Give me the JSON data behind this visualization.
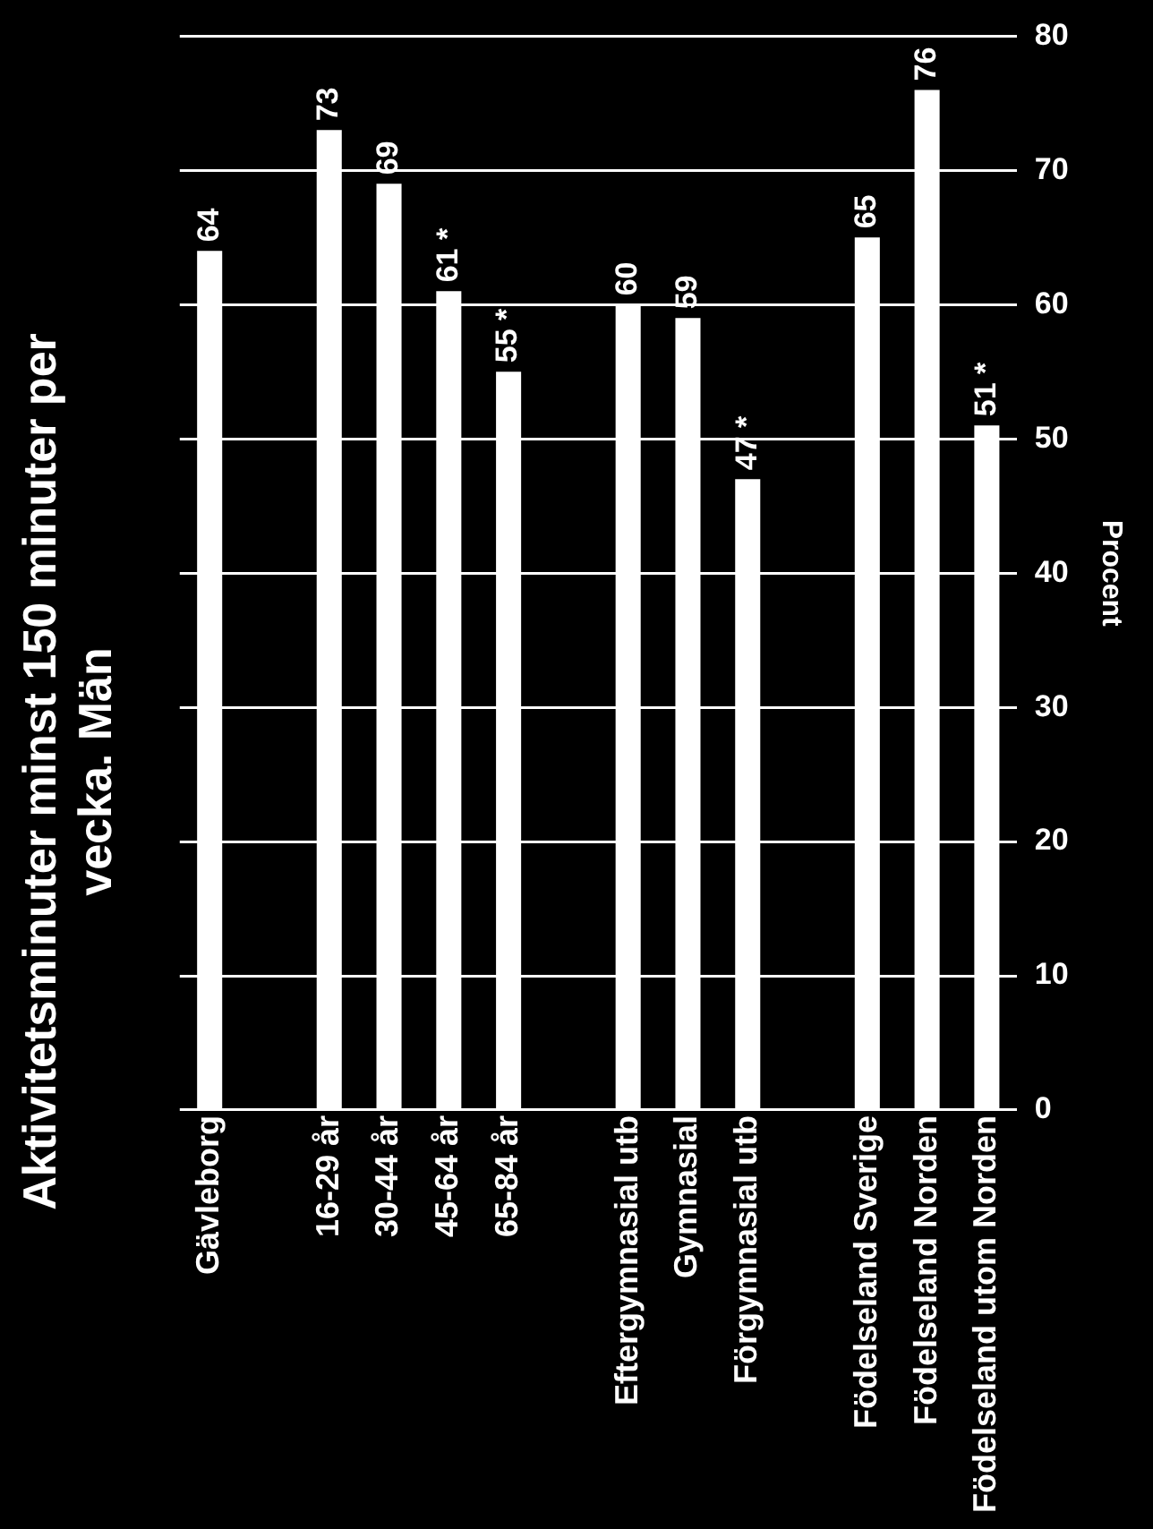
{
  "chart_data": {
    "type": "bar",
    "title": "Aktivitetsminuter minst 150 minuter per vecka. Män",
    "ylabel": "Procent",
    "categories": [
      "Gävleborg",
      null,
      "16-29 år",
      "30-44 år",
      "45-64 år",
      "65-84 år",
      null,
      "Eftergymnasial utb",
      "Gymnasial",
      "Förgymnasial utb",
      null,
      "Födelseland Sverige",
      "Födelseland Norden",
      "Födelseland utom Norden"
    ],
    "values": [
      64,
      null,
      73,
      69,
      61,
      55,
      null,
      60,
      59,
      47,
      null,
      65,
      76,
      51
    ],
    "value_labels": [
      "64",
      null,
      "73",
      "69",
      "61 *",
      "55 *",
      null,
      "60",
      "59",
      "47 *",
      null,
      "65",
      "76",
      "51 *"
    ],
    "color": "#ffffff",
    "ylim": [
      0,
      80
    ],
    "yticks": [
      0,
      10,
      20,
      30,
      40,
      50,
      60,
      70,
      80
    ],
    "grid": "y",
    "legend": false
  }
}
